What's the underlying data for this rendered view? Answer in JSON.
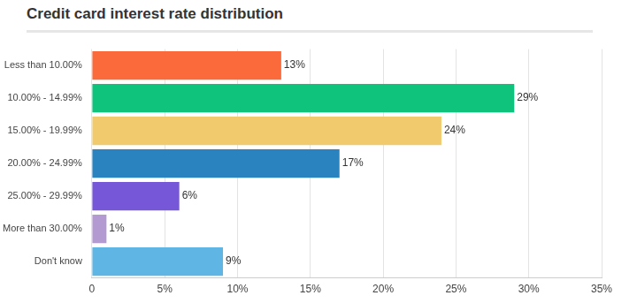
{
  "chart_data": {
    "type": "bar",
    "title": "Credit card interest rate distribution",
    "orientation": "horizontal",
    "categories": [
      "Less than 10.00%",
      "10.00% - 14.99%",
      "15.00% - 19.99%",
      "20.00% - 24.99%",
      "25.00% - 29.99%",
      "More than 30.00%",
      "Don't know"
    ],
    "values": [
      13,
      29,
      24,
      17,
      6,
      1,
      9
    ],
    "value_labels": [
      "13%",
      "29%",
      "24%",
      "17%",
      "6%",
      "1%",
      "9%"
    ],
    "colors": [
      "#fb6a3b",
      "#10c37c",
      "#f0ca6c",
      "#2a82bf",
      "#7657d8",
      "#b39bd1",
      "#5fb6e5"
    ],
    "xlim": [
      0,
      35
    ],
    "xticks": [
      0,
      {
        "value": 5,
        "label": "5%"
      },
      {
        "value": 10,
        "label": "10%"
      },
      {
        "value": 15,
        "label": "15%"
      },
      {
        "value": 20,
        "label": "20%"
      },
      {
        "value": 25,
        "label": "25%"
      },
      {
        "value": 30,
        "label": "30%"
      },
      {
        "value": 35,
        "label": "35%"
      }
    ],
    "grid": true,
    "data_labels": true,
    "legend": false
  }
}
